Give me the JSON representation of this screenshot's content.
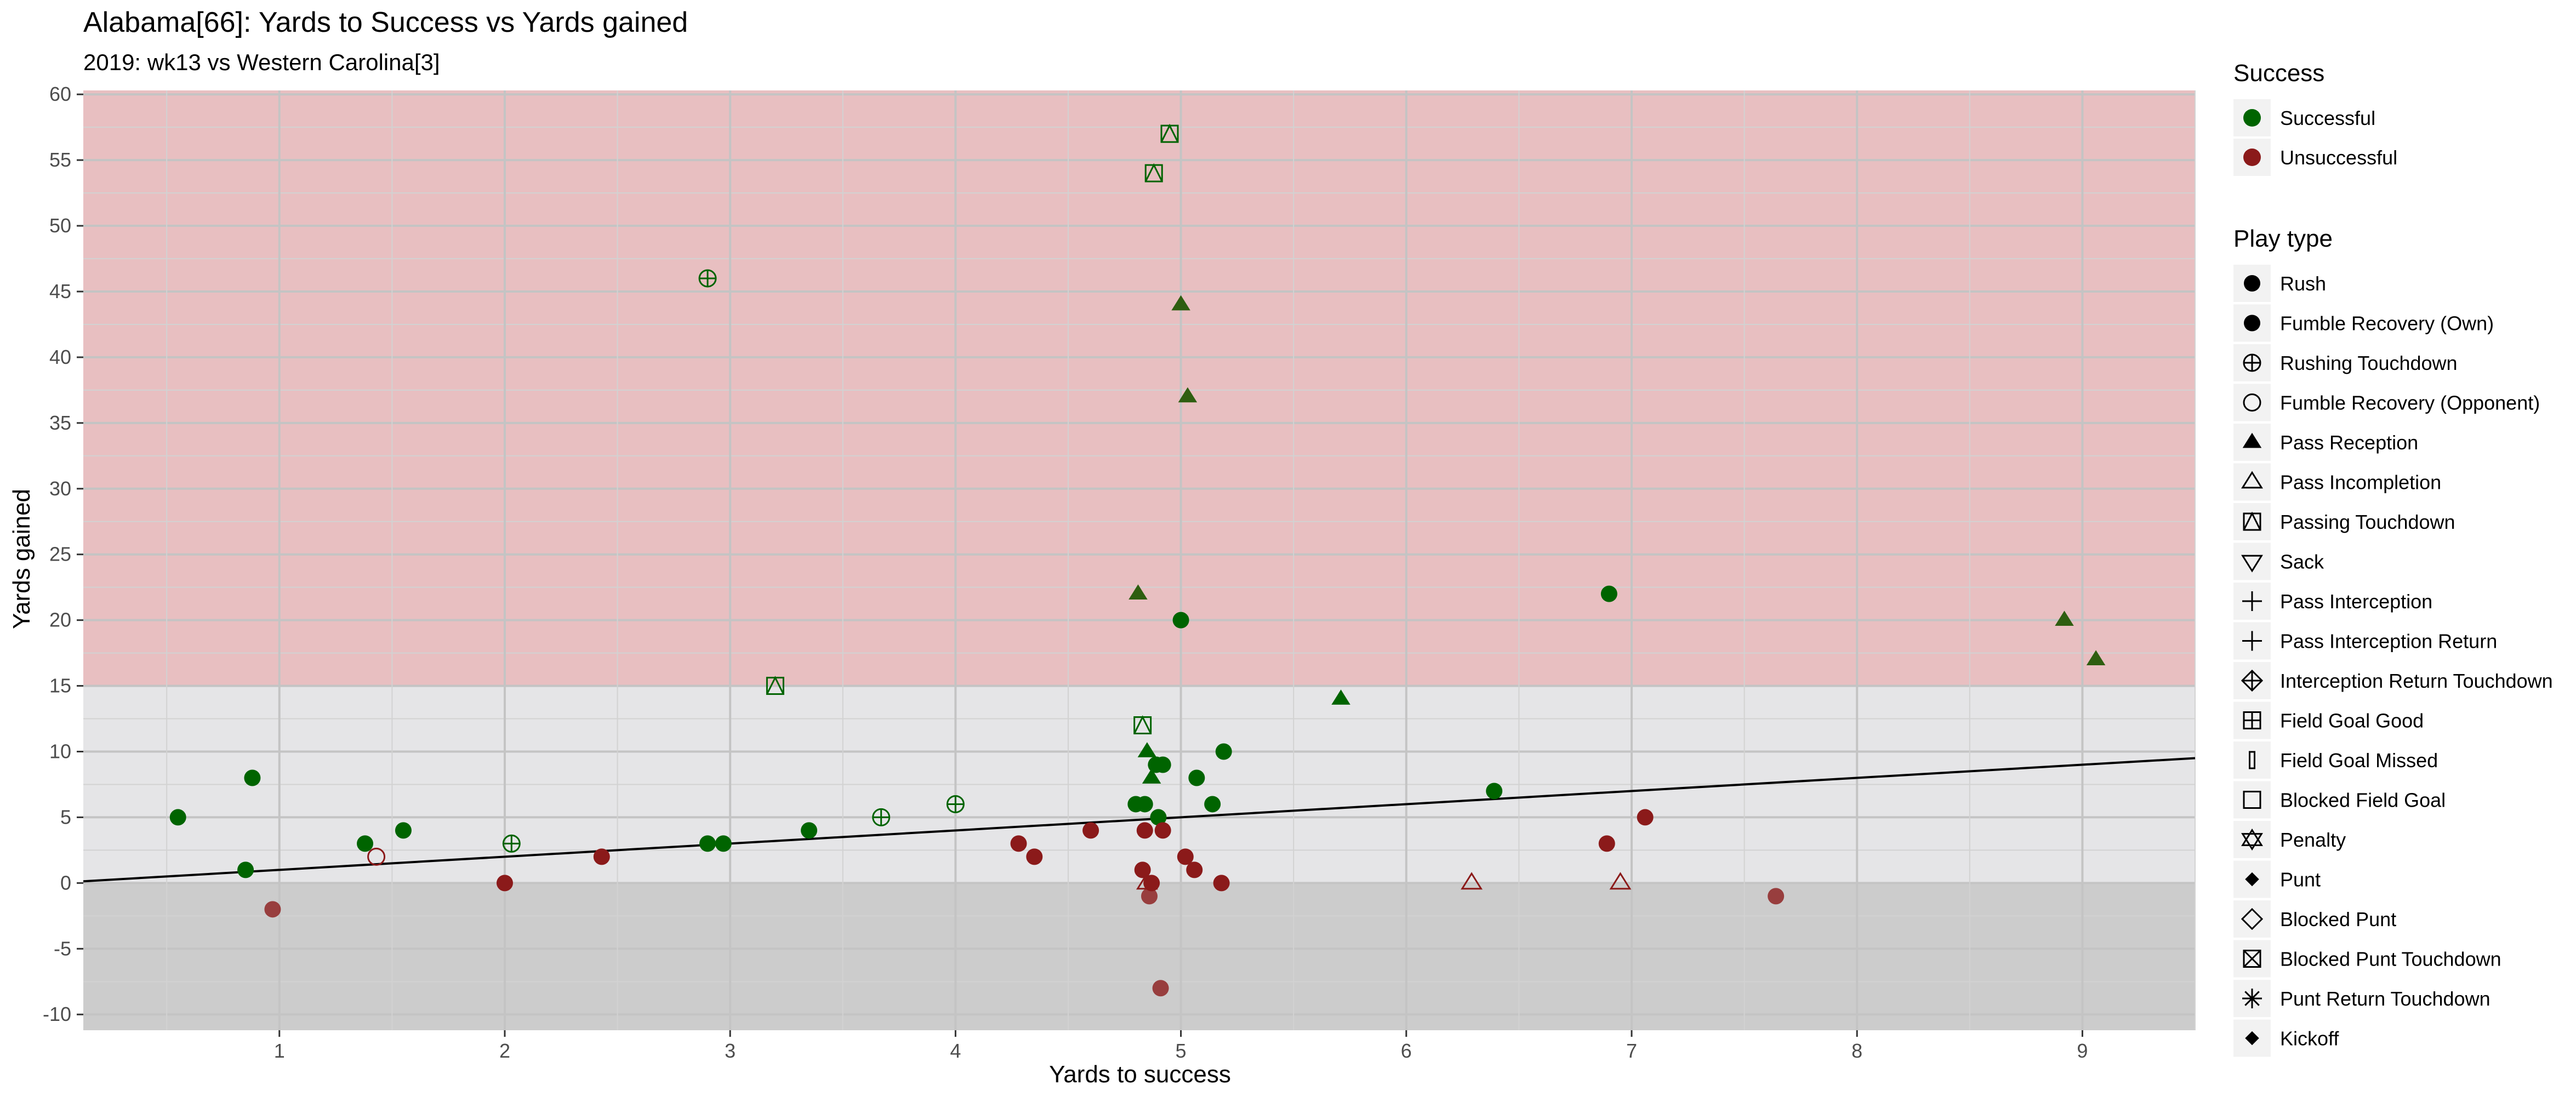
{
  "chart_data": {
    "type": "scatter",
    "title": "Alabama[66]: Yards to Success vs Yards gained",
    "subtitle": "2019: wk13 vs Western Carolina[3]",
    "xlabel": "Yards to success",
    "ylabel": "Yards gained",
    "xlim": [
      0.13,
      9.5
    ],
    "ylim": [
      -11.2,
      60.3
    ],
    "x_ticks": [
      1,
      2,
      3,
      4,
      5,
      6,
      7,
      8,
      9
    ],
    "y_ticks": [
      -10,
      -5,
      0,
      5,
      10,
      15,
      20,
      25,
      30,
      35,
      40,
      45,
      50,
      55,
      60
    ],
    "grid": true,
    "bands": [
      {
        "from": 15,
        "to": 60.3,
        "color": "#e8bfc1"
      },
      {
        "from": 0,
        "to": 15,
        "color": "#e5e5e7"
      },
      {
        "from": -11.2,
        "to": 0,
        "color": "#cccccc"
      }
    ],
    "trend_line": {
      "x": [
        0.13,
        9.5
      ],
      "y": [
        0.13,
        9.5
      ]
    },
    "colors": {
      "Successful": "#006400",
      "Unsuccessful": "#8b1a1a",
      "pass_touchdown": "#2e5e10"
    },
    "points": [
      {
        "x": 0.55,
        "y": 5,
        "success": "Successful",
        "play_type": "Rush"
      },
      {
        "x": 0.85,
        "y": 1,
        "success": "Successful",
        "play_type": "Rush"
      },
      {
        "x": 0.88,
        "y": 8,
        "success": "Successful",
        "play_type": "Rush"
      },
      {
        "x": 0.97,
        "y": -2,
        "success": "Unsuccessful",
        "play_type": "Rush"
      },
      {
        "x": 1.38,
        "y": 3,
        "success": "Successful",
        "play_type": "Rush"
      },
      {
        "x": 1.43,
        "y": 2,
        "success": "Unsuccessful",
        "play_type": "Fumble Recovery (Opponent)"
      },
      {
        "x": 1.55,
        "y": 4,
        "success": "Successful",
        "play_type": "Rush"
      },
      {
        "x": 2.0,
        "y": 0,
        "success": "Unsuccessful",
        "play_type": "Rush"
      },
      {
        "x": 2.03,
        "y": 3,
        "success": "Successful",
        "play_type": "Rushing Touchdown"
      },
      {
        "x": 2.43,
        "y": 2,
        "success": "Unsuccessful",
        "play_type": "Rush"
      },
      {
        "x": 2.9,
        "y": 3,
        "success": "Successful",
        "play_type": "Rush"
      },
      {
        "x": 2.9,
        "y": 46,
        "success": "Successful",
        "play_type": "Rushing Touchdown"
      },
      {
        "x": 2.97,
        "y": 3,
        "success": "Successful",
        "play_type": "Rush"
      },
      {
        "x": 3.2,
        "y": 15,
        "success": "Successful",
        "play_type": "Passing Touchdown"
      },
      {
        "x": 3.35,
        "y": 4,
        "success": "Successful",
        "play_type": "Rush"
      },
      {
        "x": 3.67,
        "y": 5,
        "success": "Successful",
        "play_type": "Rushing Touchdown"
      },
      {
        "x": 4.0,
        "y": 6,
        "success": "Successful",
        "play_type": "Rushing Touchdown"
      },
      {
        "x": 4.28,
        "y": 3,
        "success": "Unsuccessful",
        "play_type": "Rush"
      },
      {
        "x": 4.35,
        "y": 2,
        "success": "Unsuccessful",
        "play_type": "Rush"
      },
      {
        "x": 4.6,
        "y": 4,
        "success": "Unsuccessful",
        "play_type": "Rush"
      },
      {
        "x": 4.8,
        "y": 6,
        "success": "Successful",
        "play_type": "Rush"
      },
      {
        "x": 4.81,
        "y": 22,
        "success": "Successful",
        "play_type": "Pass Reception"
      },
      {
        "x": 4.83,
        "y": 12,
        "success": "Successful",
        "play_type": "Passing Touchdown"
      },
      {
        "x": 4.83,
        "y": 1,
        "success": "Unsuccessful",
        "play_type": "Rush"
      },
      {
        "x": 4.84,
        "y": 6,
        "success": "Successful",
        "play_type": "Rush"
      },
      {
        "x": 4.84,
        "y": 4,
        "success": "Unsuccessful",
        "play_type": "Rush"
      },
      {
        "x": 4.85,
        "y": 10,
        "success": "Successful",
        "play_type": "Pass Reception"
      },
      {
        "x": 4.85,
        "y": 0,
        "success": "Unsuccessful",
        "play_type": "Pass Incompletion"
      },
      {
        "x": 4.86,
        "y": -1,
        "success": "Unsuccessful",
        "play_type": "Rush"
      },
      {
        "x": 4.87,
        "y": 8,
        "success": "Successful",
        "play_type": "Pass Reception"
      },
      {
        "x": 4.87,
        "y": 0,
        "success": "Unsuccessful",
        "play_type": "Rush"
      },
      {
        "x": 4.88,
        "y": 54,
        "success": "Successful",
        "play_type": "Passing Touchdown"
      },
      {
        "x": 4.89,
        "y": 9,
        "success": "Successful",
        "play_type": "Rush"
      },
      {
        "x": 4.9,
        "y": 5,
        "success": "Successful",
        "play_type": "Rush"
      },
      {
        "x": 4.91,
        "y": -8,
        "success": "Unsuccessful",
        "play_type": "Rush"
      },
      {
        "x": 4.92,
        "y": 9,
        "success": "Successful",
        "play_type": "Rush"
      },
      {
        "x": 4.92,
        "y": 4,
        "success": "Unsuccessful",
        "play_type": "Rush"
      },
      {
        "x": 4.95,
        "y": 57,
        "success": "Successful",
        "play_type": "Passing Touchdown"
      },
      {
        "x": 5.0,
        "y": 20,
        "success": "Successful",
        "play_type": "Rush"
      },
      {
        "x": 5.0,
        "y": 44,
        "success": "Successful",
        "play_type": "Pass Reception"
      },
      {
        "x": 5.02,
        "y": 2,
        "success": "Unsuccessful",
        "play_type": "Rush"
      },
      {
        "x": 5.03,
        "y": 37,
        "success": "Successful",
        "play_type": "Pass Reception"
      },
      {
        "x": 5.06,
        "y": 1,
        "success": "Unsuccessful",
        "play_type": "Rush"
      },
      {
        "x": 5.07,
        "y": 8,
        "success": "Successful",
        "play_type": "Rush"
      },
      {
        "x": 5.14,
        "y": 6,
        "success": "Successful",
        "play_type": "Rush"
      },
      {
        "x": 5.18,
        "y": 0,
        "success": "Unsuccessful",
        "play_type": "Rush"
      },
      {
        "x": 5.19,
        "y": 10,
        "success": "Successful",
        "play_type": "Rush"
      },
      {
        "x": 5.71,
        "y": 14,
        "success": "Successful",
        "play_type": "Pass Reception"
      },
      {
        "x": 6.29,
        "y": 0,
        "success": "Unsuccessful",
        "play_type": "Pass Incompletion"
      },
      {
        "x": 6.39,
        "y": 7,
        "success": "Successful",
        "play_type": "Rush"
      },
      {
        "x": 6.89,
        "y": 3,
        "success": "Unsuccessful",
        "play_type": "Rush"
      },
      {
        "x": 6.9,
        "y": 22,
        "success": "Successful",
        "play_type": "Rush"
      },
      {
        "x": 6.95,
        "y": 0,
        "success": "Unsuccessful",
        "play_type": "Pass Incompletion"
      },
      {
        "x": 7.06,
        "y": 5,
        "success": "Unsuccessful",
        "play_type": "Rush"
      },
      {
        "x": 7.64,
        "y": -1,
        "success": "Unsuccessful",
        "play_type": "Rush"
      },
      {
        "x": 8.92,
        "y": 20,
        "success": "Successful",
        "play_type": "Pass Reception"
      },
      {
        "x": 9.06,
        "y": 17,
        "success": "Successful",
        "play_type": "Pass Reception"
      }
    ],
    "legend": {
      "placement": "right",
      "success": {
        "title": "Success",
        "items": [
          {
            "label": "Successful",
            "color": "#006400"
          },
          {
            "label": "Unsuccessful",
            "color": "#8b1a1a"
          }
        ]
      },
      "play_type": {
        "title": "Play type",
        "items": [
          {
            "label": "Rush",
            "shape": "circle-filled"
          },
          {
            "label": "Fumble Recovery (Own)",
            "shape": "circle-filled"
          },
          {
            "label": "Rushing Touchdown",
            "shape": "circle-plus"
          },
          {
            "label": "Fumble Recovery (Opponent)",
            "shape": "circle-open"
          },
          {
            "label": "Pass Reception",
            "shape": "triangle-filled"
          },
          {
            "label": "Pass Incompletion",
            "shape": "triangle-open"
          },
          {
            "label": "Passing Touchdown",
            "shape": "square-triangle"
          },
          {
            "label": "Sack",
            "shape": "triangle-down-open"
          },
          {
            "label": "Pass Interception",
            "shape": "plus"
          },
          {
            "label": "Pass Interception Return",
            "shape": "plus"
          },
          {
            "label": "Interception Return Touchdown",
            "shape": "diamond-plus"
          },
          {
            "label": "Field Goal Good",
            "shape": "square-plus"
          },
          {
            "label": "Field Goal Missed",
            "shape": "thin-rect"
          },
          {
            "label": "Blocked Field Goal",
            "shape": "square-open"
          },
          {
            "label": "Penalty",
            "shape": "star-of-david"
          },
          {
            "label": "Punt",
            "shape": "diamond-filled"
          },
          {
            "label": "Blocked Punt",
            "shape": "diamond-open"
          },
          {
            "label": "Blocked Punt Touchdown",
            "shape": "square-x"
          },
          {
            "label": "Punt Return Touchdown",
            "shape": "asterisk"
          },
          {
            "label": "Kickoff",
            "shape": "diamond-filled"
          }
        ]
      }
    }
  }
}
